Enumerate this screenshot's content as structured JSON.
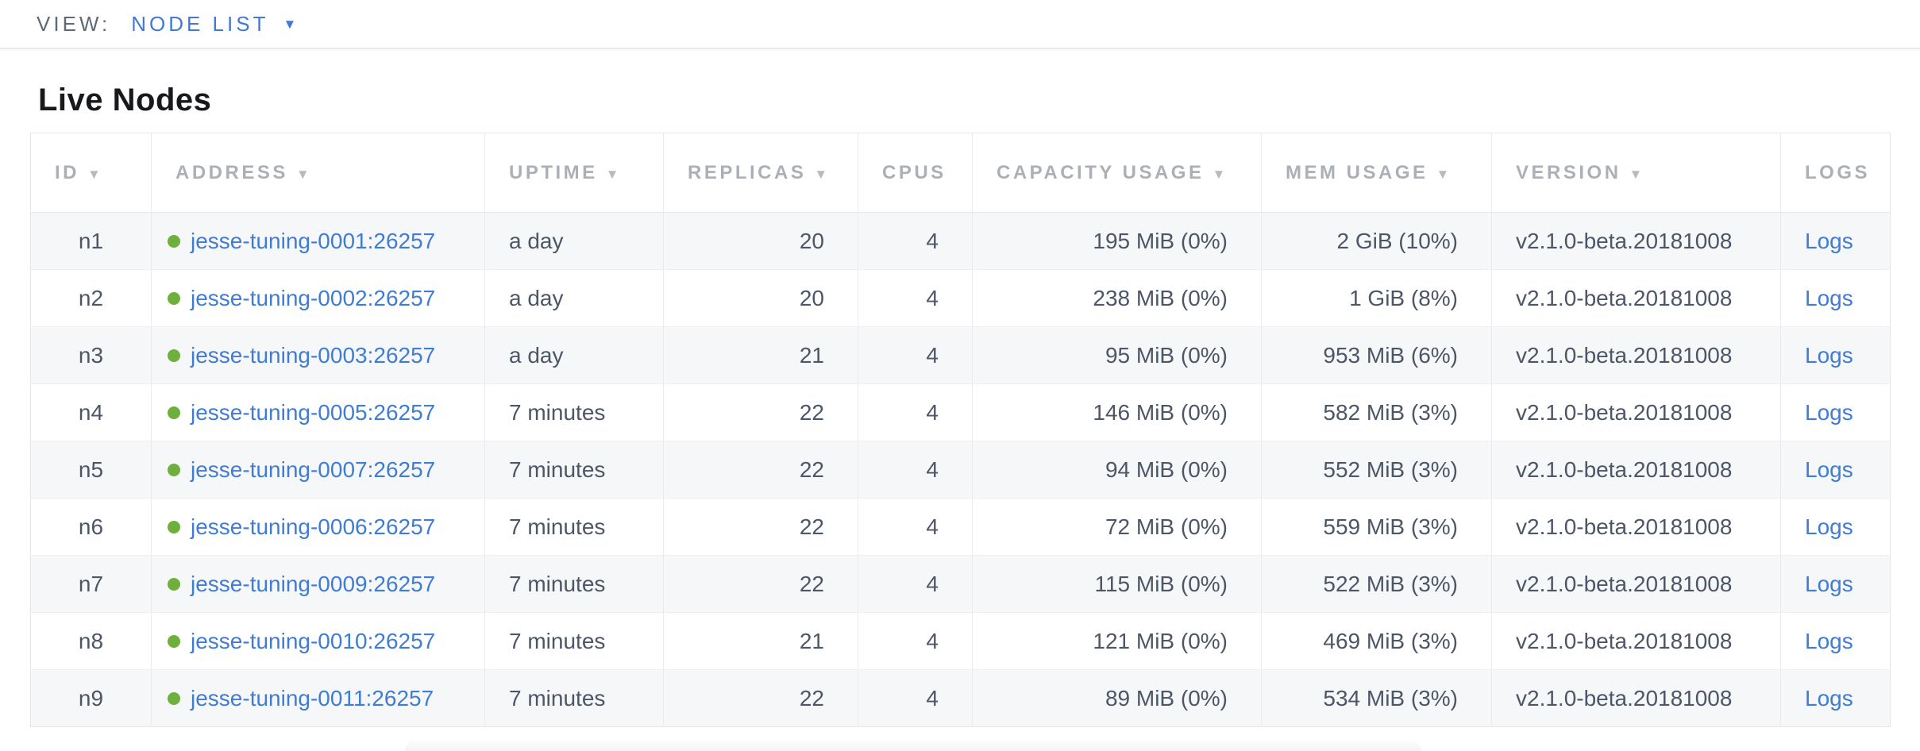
{
  "toolbar": {
    "view_label": "VIEW:",
    "view_value": "NODE LIST"
  },
  "icons": {
    "sort_arrow": "▼",
    "dropdown_caret": "▼"
  },
  "page": {
    "title": "Live Nodes"
  },
  "colors": {
    "link_blue": "#3e7cd6",
    "live_status_green": "#6fb03c",
    "header_gray": "#acb0b6",
    "row_alt_gray": "#f6f7f8",
    "cell_text": "#4c5667"
  },
  "table": {
    "columns": [
      {
        "key": "id",
        "label": "ID",
        "sortable": true
      },
      {
        "key": "address",
        "label": "ADDRESS",
        "sortable": true
      },
      {
        "key": "uptime",
        "label": "UPTIME",
        "sortable": true
      },
      {
        "key": "replicas",
        "label": "REPLICAS",
        "sortable": true
      },
      {
        "key": "cpus",
        "label": "CPUS",
        "sortable": false
      },
      {
        "key": "capacity",
        "label": "CAPACITY USAGE",
        "sortable": true
      },
      {
        "key": "mem",
        "label": "MEM USAGE",
        "sortable": true
      },
      {
        "key": "version",
        "label": "VERSION",
        "sortable": true
      },
      {
        "key": "logs",
        "label": "LOGS",
        "sortable": false
      }
    ],
    "rows": [
      {
        "id": "n1",
        "address": "jesse-tuning-0001:26257",
        "uptime": "a day",
        "replicas": "20",
        "cpus": "4",
        "capacity": "195 MiB (0%)",
        "mem": "2 GiB (10%)",
        "version": "v2.1.0-beta.20181008",
        "logs": "Logs"
      },
      {
        "id": "n2",
        "address": "jesse-tuning-0002:26257",
        "uptime": "a day",
        "replicas": "20",
        "cpus": "4",
        "capacity": "238 MiB (0%)",
        "mem": "1 GiB (8%)",
        "version": "v2.1.0-beta.20181008",
        "logs": "Logs"
      },
      {
        "id": "n3",
        "address": "jesse-tuning-0003:26257",
        "uptime": "a day",
        "replicas": "21",
        "cpus": "4",
        "capacity": "95 MiB (0%)",
        "mem": "953 MiB (6%)",
        "version": "v2.1.0-beta.20181008",
        "logs": "Logs"
      },
      {
        "id": "n4",
        "address": "jesse-tuning-0005:26257",
        "uptime": "7 minutes",
        "replicas": "22",
        "cpus": "4",
        "capacity": "146 MiB (0%)",
        "mem": "582 MiB (3%)",
        "version": "v2.1.0-beta.20181008",
        "logs": "Logs"
      },
      {
        "id": "n5",
        "address": "jesse-tuning-0007:26257",
        "uptime": "7 minutes",
        "replicas": "22",
        "cpus": "4",
        "capacity": "94 MiB (0%)",
        "mem": "552 MiB (3%)",
        "version": "v2.1.0-beta.20181008",
        "logs": "Logs"
      },
      {
        "id": "n6",
        "address": "jesse-tuning-0006:26257",
        "uptime": "7 minutes",
        "replicas": "22",
        "cpus": "4",
        "capacity": "72 MiB (0%)",
        "mem": "559 MiB (3%)",
        "version": "v2.1.0-beta.20181008",
        "logs": "Logs"
      },
      {
        "id": "n7",
        "address": "jesse-tuning-0009:26257",
        "uptime": "7 minutes",
        "replicas": "22",
        "cpus": "4",
        "capacity": "115 MiB (0%)",
        "mem": "522 MiB (3%)",
        "version": "v2.1.0-beta.20181008",
        "logs": "Logs"
      },
      {
        "id": "n8",
        "address": "jesse-tuning-0010:26257",
        "uptime": "7 minutes",
        "replicas": "21",
        "cpus": "4",
        "capacity": "121 MiB (0%)",
        "mem": "469 MiB (3%)",
        "version": "v2.1.0-beta.20181008",
        "logs": "Logs"
      },
      {
        "id": "n9",
        "address": "jesse-tuning-0011:26257",
        "uptime": "7 minutes",
        "replicas": "22",
        "cpus": "4",
        "capacity": "89 MiB (0%)",
        "mem": "534 MiB (3%)",
        "version": "v2.1.0-beta.20181008",
        "logs": "Logs"
      }
    ]
  }
}
